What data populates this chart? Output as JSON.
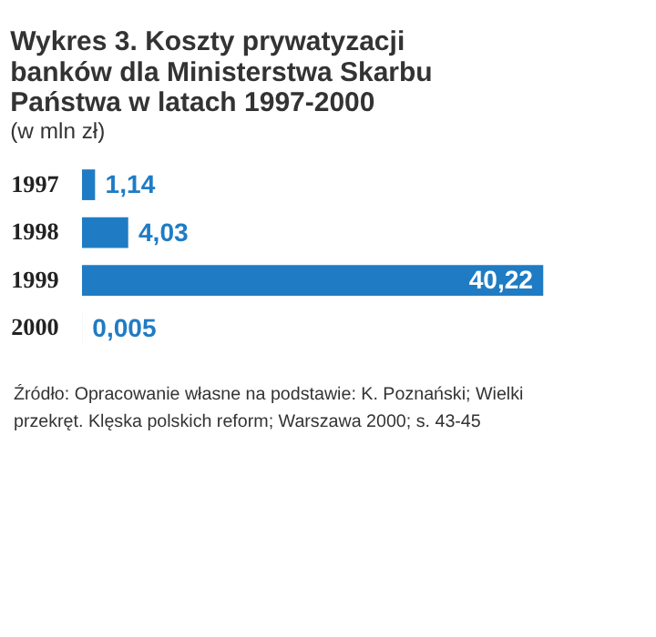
{
  "chart_data": {
    "type": "bar",
    "orientation": "horizontal",
    "title": "Wykres 3. Koszty prywatyzacji banków dla Ministerstwa Skarbu Państwa w latach 1997-2000",
    "subtitle": "(w mln zł)",
    "categories": [
      "1997",
      "1998",
      "1999",
      "2000"
    ],
    "values": [
      1.14,
      4.03,
      40.22,
      0.005
    ],
    "value_labels": [
      "1,14",
      "4,03",
      "40,22",
      "0,005"
    ],
    "color": "#1f7cc4",
    "annotations": [
      "Źródło: Opracowanie własne na podstawie: K. Poznański; Wielki przekręt. Klęska polskich reform; Warszawa 2000; s. 43-45"
    ]
  }
}
